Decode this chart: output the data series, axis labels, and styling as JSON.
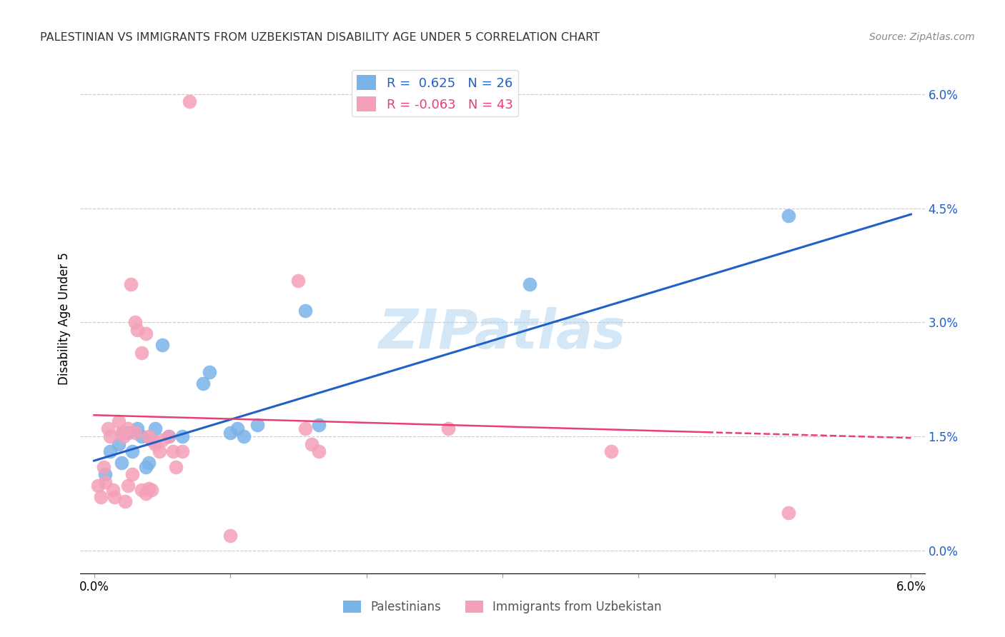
{
  "title": "PALESTINIAN VS IMMIGRANTS FROM UZBEKISTAN DISABILITY AGE UNDER 5 CORRELATION CHART",
  "source": "Source: ZipAtlas.com",
  "ylabel": "Disability Age Under 5",
  "xlim": [
    0.0,
    6.0
  ],
  "ylim": [
    -0.3,
    6.4
  ],
  "ytick_vals": [
    0.0,
    1.5,
    3.0,
    4.5,
    6.0
  ],
  "xtick_vals": [
    0.0,
    1.0,
    2.0,
    3.0,
    4.0,
    5.0,
    6.0
  ],
  "blue_color": "#7ab3e8",
  "pink_color": "#f4a0b8",
  "blue_line_color": "#2060c8",
  "pink_line_color": "#e84070",
  "blue_R": "0.625",
  "blue_N": "26",
  "pink_R": "-0.063",
  "pink_N": "43",
  "watermark": "ZIPatlas",
  "blue_points_x": [
    0.08,
    0.12,
    0.18,
    0.2,
    0.22,
    0.25,
    0.28,
    0.32,
    0.35,
    0.38,
    0.4,
    0.42,
    0.45,
    0.5,
    0.55,
    0.65,
    0.8,
    0.85,
    1.0,
    1.05,
    1.1,
    1.2,
    1.55,
    1.65,
    3.2,
    5.1
  ],
  "blue_points_y": [
    1.0,
    1.3,
    1.4,
    1.15,
    1.55,
    1.55,
    1.3,
    1.6,
    1.5,
    1.1,
    1.15,
    1.45,
    1.6,
    2.7,
    1.5,
    1.5,
    2.2,
    2.35,
    1.55,
    1.6,
    1.5,
    1.65,
    3.15,
    1.65,
    3.5,
    4.4
  ],
  "pink_points_x": [
    0.03,
    0.05,
    0.07,
    0.08,
    0.1,
    0.12,
    0.14,
    0.15,
    0.18,
    0.2,
    0.22,
    0.23,
    0.25,
    0.25,
    0.27,
    0.28,
    0.3,
    0.3,
    0.32,
    0.35,
    0.35,
    0.38,
    0.38,
    0.4,
    0.4,
    0.42,
    0.42,
    0.45,
    0.48,
    0.5,
    0.55,
    0.58,
    0.6,
    0.65,
    0.7,
    1.0,
    1.5,
    1.55,
    1.6,
    1.65,
    2.6,
    3.8,
    5.1
  ],
  "pink_points_y": [
    0.85,
    0.7,
    1.1,
    0.9,
    1.6,
    1.5,
    0.8,
    0.7,
    1.7,
    1.55,
    1.5,
    0.65,
    1.6,
    0.85,
    3.5,
    1.0,
    1.55,
    3.0,
    2.9,
    2.6,
    0.8,
    2.85,
    0.75,
    1.5,
    0.82,
    1.45,
    0.8,
    1.4,
    1.3,
    1.45,
    1.5,
    1.3,
    1.1,
    1.3,
    5.9,
    0.2,
    3.55,
    1.6,
    1.4,
    1.3,
    1.6,
    1.3,
    0.5
  ],
  "blue_slope": 0.54,
  "blue_intercept": 1.18,
  "pink_slope": -0.05,
  "pink_intercept": 1.78,
  "pink_dash_start": 4.5
}
